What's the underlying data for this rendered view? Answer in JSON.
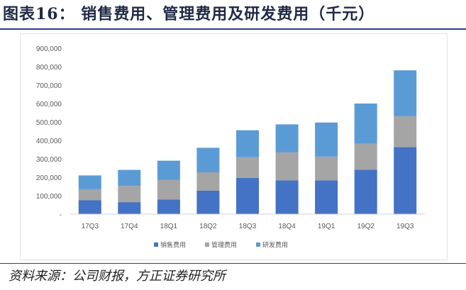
{
  "figure": {
    "title": "图表16：  销售费用、管理费用及研发费用（千元）",
    "source": "资料来源：公司财报，方正证券研究所"
  },
  "colors": {
    "sales": "#4472c4",
    "admin": "#a5a5a5",
    "rnd": "#5b9bd5",
    "rule": "#2b3f8c"
  },
  "chart_data": {
    "type": "bar",
    "stacked": true,
    "categories": [
      "17Q3",
      "17Q4",
      "18Q1",
      "18Q2",
      "18Q3",
      "18Q4",
      "19Q1",
      "19Q2",
      "19Q3"
    ],
    "series": [
      {
        "name": "销售费用",
        "values": [
          75000,
          65000,
          80000,
          127000,
          197000,
          183000,
          183000,
          241000,
          364000
        ]
      },
      {
        "name": "管理费用",
        "values": [
          60000,
          88000,
          105000,
          100000,
          112000,
          152000,
          129000,
          141000,
          167000
        ]
      },
      {
        "name": "研发费用",
        "values": [
          75000,
          87000,
          105000,
          133000,
          146000,
          152000,
          185000,
          218000,
          249000
        ]
      }
    ],
    "ylim": [
      0,
      900000
    ],
    "yticks": [
      "-",
      "100,000",
      "200,000",
      "300,000",
      "400,000",
      "500,000",
      "600,000",
      "700,000",
      "800,000",
      "900,000"
    ],
    "ytick_values": [
      0,
      100000,
      200000,
      300000,
      400000,
      500000,
      600000,
      700000,
      800000,
      900000
    ],
    "xlabel": "",
    "ylabel": "",
    "grid": false,
    "legend_position": "bottom"
  }
}
